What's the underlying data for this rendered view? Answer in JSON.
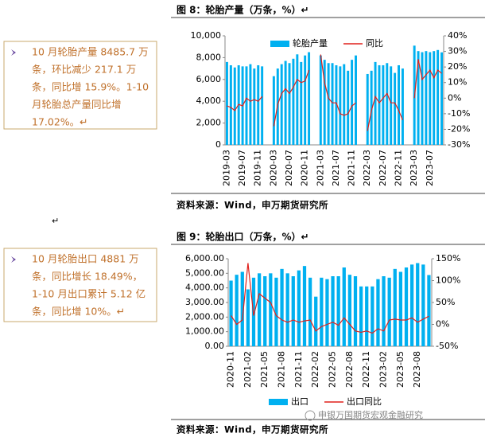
{
  "notes": [
    {
      "lines": [
        "10 月轮胎产量 8485.7 万",
        "条，环比减少 217.1 万",
        "条，同比增 15.9%。1-10",
        "月轮胎总产量同比增",
        "17.02%。↵"
      ]
    },
    {
      "lines": [
        "10 月轮胎出口 4881 万",
        "条，同比增长 18.49%，",
        "1-10 月出口累计 5.12 亿",
        "条，同比增 10%。↵"
      ]
    }
  ],
  "blank_paragraph": "↵",
  "watermark": "申银万国期货宏观金融研究",
  "chart_data": [
    {
      "type": "bar",
      "title": "图 8：轮胎产量（万条，%）↵",
      "source": "资料来源：Wind，申万期货研究所",
      "legend": "top",
      "categories": [
        "2019-03",
        null,
        null,
        null,
        "2019-07",
        null,
        null,
        null,
        "2019-11",
        null,
        null,
        null,
        "2020-03",
        null,
        null,
        null,
        "2020-07",
        null,
        null,
        null,
        "2020-11",
        null,
        null,
        null,
        "2021-03",
        null,
        null,
        null,
        "2021-07",
        null,
        null,
        null,
        "2021-11",
        null,
        null,
        null,
        "2022-03",
        null,
        null,
        null,
        "2022-07",
        null,
        null,
        null,
        "2022-11",
        null,
        null,
        null,
        "2023-03",
        null,
        null,
        null,
        "2023-07",
        null,
        null,
        null
      ],
      "series": [
        {
          "name": "轮胎产量",
          "type": "bar",
          "color": "#00b0f0",
          "values": [
            7600,
            7300,
            7100,
            7300,
            7200,
            7200,
            7400,
            7000,
            7300,
            7200,
            null,
            null,
            6300,
            7000,
            7400,
            7700,
            7500,
            7900,
            8300,
            7600,
            8200,
            8500,
            null,
            null,
            8200,
            7800,
            7500,
            7500,
            7300,
            7200,
            7400,
            6800,
            7800,
            8200,
            null,
            null,
            6500,
            6800,
            7600,
            7300,
            7300,
            7500,
            7200,
            6600,
            7300,
            7000,
            null,
            null,
            9100,
            8600,
            8500,
            8600,
            8500,
            8600,
            8700,
            8485.7
          ]
        },
        {
          "name": "同比",
          "type": "line",
          "color": "#e0201b",
          "axis": "y2",
          "values": [
            -5,
            -6,
            -8,
            -4,
            -5,
            0,
            -2,
            -1,
            -2,
            1,
            null,
            null,
            -18,
            -4,
            3,
            6,
            3,
            7,
            12,
            10,
            11,
            18,
            null,
            null,
            28,
            10,
            0,
            -3,
            -3,
            -10,
            -11,
            -10,
            -5,
            -3,
            null,
            null,
            -21,
            -8,
            1,
            -3,
            0,
            3,
            -3,
            -3,
            -8,
            -14,
            null,
            null,
            0,
            25,
            12,
            15,
            18,
            13,
            18,
            15.9
          ]
        }
      ],
      "ylim": [
        0,
        10000
      ],
      "yticks": [
        0,
        {
          "value": 2000,
          "label": "2,000"
        },
        {
          "value": 4000,
          "label": "4,000"
        },
        {
          "value": 6000,
          "label": "6,000"
        },
        {
          "value": 8000,
          "label": "8,000"
        },
        {
          "value": 10000,
          "label": "10,000"
        }
      ],
      "y2lim": [
        -30,
        40
      ],
      "y2ticks": [
        {
          "value": -30,
          "label": "-30%"
        },
        {
          "value": -20,
          "label": "-20%"
        },
        {
          "value": -10,
          "label": "-10%"
        },
        {
          "value": 0,
          "label": "0%"
        },
        {
          "value": 10,
          "label": "10%"
        },
        {
          "value": 20,
          "label": "20%"
        },
        {
          "value": 30,
          "label": "30%"
        },
        {
          "value": 40,
          "label": "40%"
        }
      ]
    },
    {
      "type": "bar",
      "title": "图 9：轮胎出口（万条，%）↵",
      "source": "资料来源：Wind，申万期货研究所",
      "legend": "bottom",
      "categories": [
        "2020-11",
        null,
        null,
        "2021-02",
        null,
        null,
        "2021-05",
        null,
        null,
        "2021-08",
        null,
        null,
        "2021-11",
        null,
        null,
        "2022-02",
        null,
        null,
        "2022-05",
        null,
        null,
        "2022-08",
        null,
        null,
        "2022-11",
        null,
        null,
        "2023-02",
        null,
        null,
        "2023-05",
        null,
        null,
        "2023-08",
        null,
        null
      ],
      "series": [
        {
          "name": "出口",
          "type": "bar",
          "color": "#00b0f0",
          "values": [
            4500,
            4900,
            5100,
            3900,
            4700,
            5000,
            4800,
            5000,
            4700,
            5300,
            5000,
            4800,
            5200,
            5500,
            4700,
            3400,
            4700,
            4600,
            4800,
            4800,
            5400,
            4900,
            4800,
            4100,
            4100,
            4100,
            4600,
            4800,
            4700,
            5300,
            5100,
            5400,
            5600,
            5700,
            5600,
            4881
          ]
        },
        {
          "name": "出口同比",
          "type": "line",
          "color": "#e0201b",
          "axis": "y2",
          "values": [
            20,
            0,
            10,
            140,
            20,
            70,
            60,
            50,
            20,
            10,
            5,
            10,
            5,
            8,
            10,
            -15,
            -5,
            0,
            5,
            -2,
            15,
            0,
            -15,
            -18,
            -15,
            -20,
            -10,
            -15,
            10,
            12,
            10,
            10,
            15,
            5,
            12,
            18.49
          ]
        }
      ],
      "ylim": [
        0,
        6000
      ],
      "yticks": [
        {
          "value": 0,
          "label": "0.00"
        },
        {
          "value": 1000,
          "label": "1,000.00"
        },
        {
          "value": 2000,
          "label": "2,000.00"
        },
        {
          "value": 3000,
          "label": "3,000.00"
        },
        {
          "value": 4000,
          "label": "4,000.00"
        },
        {
          "value": 5000,
          "label": "5,000.00"
        },
        {
          "value": 6000,
          "label": "6,000.00"
        }
      ],
      "y2lim": [
        -50,
        150
      ],
      "y2ticks": [
        {
          "value": -50,
          "label": "-50%"
        },
        {
          "value": 0,
          "label": "0%"
        },
        {
          "value": 50,
          "label": "50%"
        },
        {
          "value": 100,
          "label": "100%"
        },
        {
          "value": 150,
          "label": "150%"
        }
      ]
    }
  ]
}
